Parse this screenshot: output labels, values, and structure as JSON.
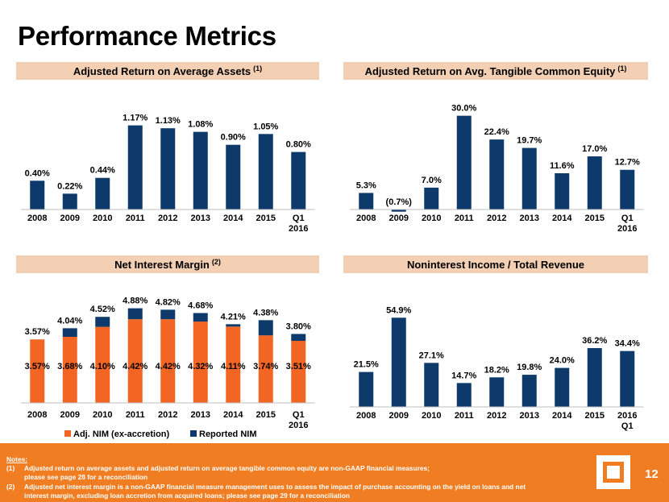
{
  "title": "Performance Metrics",
  "panels": {
    "roaa": {
      "title": "Adjusted Return on Average Assets",
      "note": "(1)"
    },
    "rotce": {
      "title": "Adjusted Return on Avg. Tangible Common Equity",
      "note": "(1)"
    },
    "nim": {
      "title": "Net Interest Margin",
      "note": "(2)"
    },
    "nonint": {
      "title": "Noninterest Income / Total Revenue",
      "note": ""
    }
  },
  "chart_data": [
    {
      "type": "bar",
      "title": "Adjusted Return on Average Assets (1)",
      "categories": [
        "2008",
        "2009",
        "2010",
        "2011",
        "2012",
        "2013",
        "2014",
        "2015",
        "Q1\n2016"
      ],
      "values": [
        0.4,
        0.22,
        0.44,
        1.17,
        1.13,
        1.08,
        0.9,
        1.05,
        0.8
      ],
      "labels": [
        "0.40%",
        "0.22%",
        "0.44%",
        "1.17%",
        "1.13%",
        "1.08%",
        "0.90%",
        "1.05%",
        "0.80%"
      ],
      "ylim": [
        0.2,
        1.3
      ],
      "color": "#0d3a6b"
    },
    {
      "type": "bar",
      "title": "Adjusted Return on Avg. Tangible Common Equity (1)",
      "categories": [
        "2008",
        "2009",
        "2010",
        "2011",
        "2012",
        "2013",
        "2014",
        "2015",
        "Q1\n2016"
      ],
      "values": [
        5.3,
        -0.7,
        7.0,
        30.0,
        22.4,
        19.7,
        11.6,
        17.0,
        12.7
      ],
      "labels": [
        "5.3%",
        "(0.7%)",
        "7.0%",
        "30.0%",
        "22.4%",
        "19.7%",
        "11.6%",
        "17.0%",
        "12.7%"
      ],
      "ylim": [
        -1,
        33
      ],
      "color": "#0d3a6b"
    },
    {
      "type": "bar",
      "title": "Net Interest Margin (2)",
      "categories": [
        "2008",
        "2009",
        "2010",
        "2011",
        "2012",
        "2013",
        "2014",
        "2015",
        "Q1\n2016"
      ],
      "series": [
        {
          "name": "Adj. NIM (ex-accretion)",
          "color": "#f26522",
          "values": [
            3.57,
            3.68,
            4.1,
            4.42,
            4.42,
            4.32,
            4.11,
            3.74,
            3.51
          ],
          "labels": [
            "3.57%",
            "3.68%",
            "4.10%",
            "4.42%",
            "4.42%",
            "4.32%",
            "4.11%",
            "3.74%",
            "3.51%"
          ]
        },
        {
          "name": "Reported NIM",
          "color": "#0d3a6b",
          "values": [
            3.57,
            4.04,
            4.52,
            4.88,
            4.82,
            4.68,
            4.21,
            4.38,
            3.8
          ],
          "labels": [
            "3.57%",
            "4.04%",
            "4.52%",
            "4.88%",
            "4.82%",
            "4.68%",
            "4.21%",
            "4.38%",
            "3.80%"
          ]
        }
      ],
      "ylim": [
        2.0,
        5.2
      ],
      "legend": "bottom"
    },
    {
      "type": "bar",
      "title": "Noninterest Income / Total Revenue",
      "categories": [
        "2008",
        "2009",
        "2010",
        "2011",
        "2012",
        "2013",
        "2014",
        "2015",
        "2016\nQ1"
      ],
      "values": [
        21.5,
        54.9,
        27.1,
        14.7,
        18.2,
        19.8,
        24.0,
        36.2,
        34.4
      ],
      "labels": [
        "21.5%",
        "54.9%",
        "27.1%",
        "14.7%",
        "18.2%",
        "19.8%",
        "24.0%",
        "36.2%",
        "34.4%"
      ],
      "ylim": [
        0,
        60
      ],
      "color": "#0d3a6b"
    }
  ],
  "footer": {
    "notes_heading": "Notes:",
    "notes": [
      {
        "num": "(1)",
        "text": "Adjusted return on average assets and adjusted return on average tangible common equity are non-GAAP financial measures;",
        "text2": "please see page 28 for a reconciliation"
      },
      {
        "num": "(2)",
        "text": "Adjusted net interest margin is a non-GAAP financial measure management uses to assess the impact of purchase accounting on the yield on loans and net",
        "text2": "interest margin, excluding loan accretion from acquired loans; please see page 29 for a reconciliation"
      }
    ],
    "page_number": "12"
  }
}
